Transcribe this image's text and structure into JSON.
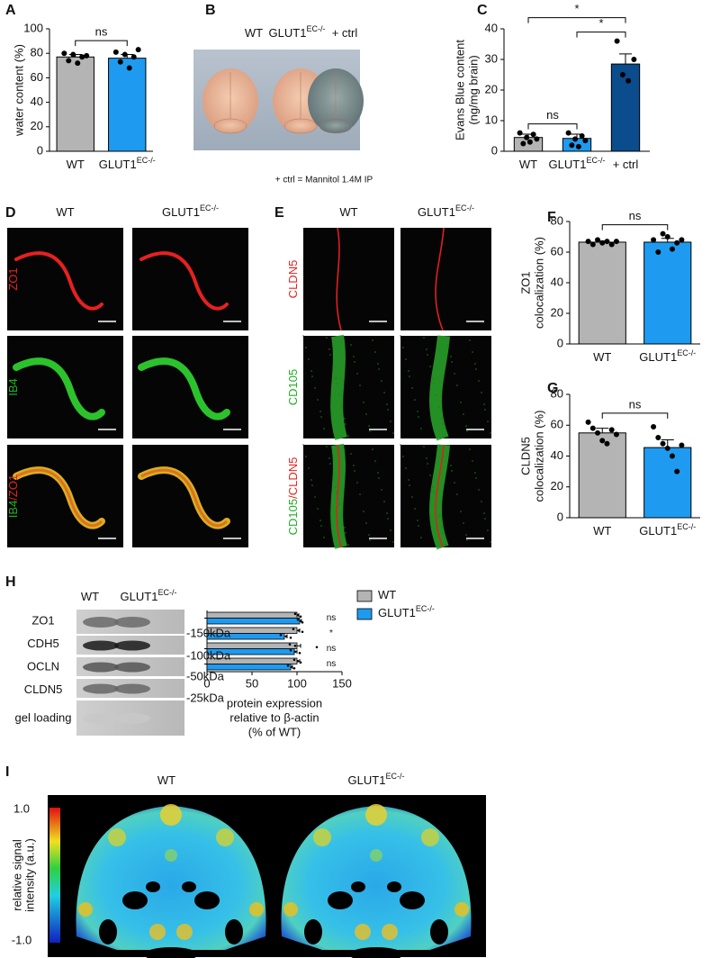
{
  "chart_data": [
    {
      "type": "bar",
      "panel": "A",
      "ylabel": [
        "water content (%)"
      ],
      "categories": [
        "WT",
        "GLUT1"
      ],
      "category_superscripts": [
        null,
        "EC-/-"
      ],
      "colors": [
        "#b4b4b4",
        "#1e9bf0"
      ],
      "values": [
        77,
        76
      ],
      "errors": [
        2,
        3
      ],
      "points": [
        [
          80,
          74,
          79,
          72,
          77,
          78
        ],
        [
          81,
          73,
          79,
          68,
          77,
          83
        ]
      ],
      "ylim": [
        0,
        100
      ],
      "yticks": [
        0,
        20,
        40,
        60,
        80,
        100
      ],
      "comparisons": [
        {
          "label": "ns",
          "groups": [
            0,
            1
          ]
        }
      ]
    },
    {
      "type": "bar",
      "panel": "C",
      "ylabel": [
        "Evans Blue content",
        "(ng/mg brain)"
      ],
      "categories": [
        "WT",
        "GLUT1",
        "+ ctrl"
      ],
      "category_superscripts": [
        null,
        "EC-/-",
        null
      ],
      "colors": [
        "#b4b4b4",
        "#1e9bf0",
        "#0b4c8c"
      ],
      "values": [
        4.5,
        4.2,
        28.5
      ],
      "errors": [
        1.1,
        1.4,
        3.3
      ],
      "points": [
        [
          6,
          2.5,
          4.5,
          3,
          5.5,
          4
        ],
        [
          6,
          2,
          4,
          1.5,
          5,
          3.5
        ],
        [
          36,
          25,
          23,
          30
        ]
      ],
      "ylim": [
        0,
        40
      ],
      "yticks": [
        0,
        10,
        20,
        30,
        40
      ],
      "comparisons": [
        {
          "label": "ns",
          "groups": [
            0,
            1
          ]
        },
        {
          "label": "*",
          "groups": [
            0,
            2
          ]
        },
        {
          "label": "*",
          "groups": [
            1,
            2
          ]
        }
      ]
    },
    {
      "type": "bar",
      "panel": "F",
      "ylabel": [
        "ZO1",
        "colocalization (%)"
      ],
      "categories": [
        "WT",
        "GLUT1"
      ],
      "category_superscripts": [
        null,
        "EC-/-"
      ],
      "colors": [
        "#b4b4b4",
        "#1e9bf0"
      ],
      "values": [
        66.5,
        66.5
      ],
      "errors": [
        0.8,
        2.5
      ],
      "points": [
        [
          67,
          65,
          68,
          66,
          67,
          65,
          67
        ],
        [
          68,
          60,
          72,
          70,
          62,
          66,
          68
        ]
      ],
      "ylim": [
        0,
        80
      ],
      "yticks": [
        0,
        20,
        40,
        60,
        80
      ],
      "comparisons": [
        {
          "label": "ns",
          "groups": [
            0,
            1
          ]
        }
      ]
    },
    {
      "type": "bar",
      "panel": "G",
      "ylabel": [
        "CLDN5",
        "colocalization (%)"
      ],
      "categories": [
        "WT",
        "GLUT1"
      ],
      "category_superscripts": [
        null,
        "EC-/-"
      ],
      "colors": [
        "#b4b4b4",
        "#1e9bf0"
      ],
      "values": [
        55,
        45.5
      ],
      "errors": [
        3,
        5
      ],
      "points": [
        [
          62,
          58,
          55,
          50,
          48,
          57,
          54
        ],
        [
          59,
          52,
          48,
          45,
          40,
          30,
          47
        ]
      ],
      "ylim": [
        0,
        80
      ],
      "yticks": [
        0,
        20,
        40,
        60,
        80
      ],
      "comparisons": [
        {
          "label": "ns",
          "groups": [
            0,
            1
          ]
        }
      ]
    },
    {
      "type": "hbar",
      "panel": "H",
      "categories": [
        "ZO1",
        "CDH5",
        "OCLN",
        "CLDN5"
      ],
      "xlabel": [
        "protein expression",
        "relative to β-actin",
        "(% of WT)"
      ],
      "xlim": [
        0,
        150
      ],
      "xticks": [
        0,
        50,
        100,
        150
      ],
      "series": [
        {
          "name": "WT",
          "name_superscript": null,
          "color": "#b4b4b4",
          "values": [
            100,
            100,
            100,
            100
          ],
          "errors": [
            2,
            3,
            4,
            3
          ],
          "points": [
            [
              98,
              101,
              104
            ],
            [
              96,
              102,
              106
            ],
            [
              92,
              98,
              122
            ],
            [
              97,
              101,
              104
            ]
          ]
        },
        {
          "name": "GLUT1",
          "name_superscript": "EC-/-",
          "color": "#1e9bf0",
          "values": [
            103,
            86,
            97,
            93
          ],
          "errors": [
            2,
            3,
            3,
            2
          ],
          "points": [
            [
              101,
              104,
              106
            ],
            [
              82,
              88,
              93
            ],
            [
              93,
              98,
              103
            ],
            [
              90,
              94,
              97
            ]
          ]
        }
      ],
      "annotations": [
        "ns",
        "*",
        "ns",
        "ns"
      ]
    }
  ],
  "figure_b": {
    "panel": "B",
    "headers": [
      "WT",
      "GLUT1",
      "+ ctrl"
    ],
    "header_superscripts": [
      null,
      "EC-/-",
      null
    ],
    "footnote": "+ ctrl = Mannitol 1.4M IP"
  },
  "figure_d": {
    "panel": "D",
    "columns": [
      "WT",
      "GLUT1"
    ],
    "column_superscripts": [
      null,
      "EC-/-"
    ],
    "row_labels": [
      [
        {
          "text": "ZO1",
          "color": "#e8231f"
        }
      ],
      [
        {
          "text": "IB4",
          "color": "#22b022"
        }
      ],
      [
        {
          "text": "IB4",
          "color": "#22b022"
        },
        {
          "text": "/ZO1",
          "color": "#e8231f"
        }
      ]
    ]
  },
  "figure_e": {
    "panel": "E",
    "columns": [
      "WT",
      "GLUT1"
    ],
    "column_superscripts": [
      null,
      "EC-/-"
    ],
    "row_labels": [
      [
        {
          "text": "CLDN5",
          "color": "#e8231f"
        }
      ],
      [
        {
          "text": "CD105",
          "color": "#22b022"
        }
      ],
      [
        {
          "text": "CD105",
          "color": "#22b022"
        },
        {
          "text": "/CLDN5",
          "color": "#e8231f"
        }
      ]
    ]
  },
  "blot": {
    "columns": [
      "WT",
      "GLUT1"
    ],
    "column_superscripts": [
      null,
      "EC-/-"
    ],
    "extra_row": "gel loading",
    "markers": [
      "-150kDa",
      "-100kDa",
      "-50kDa",
      "-25kDa"
    ]
  },
  "figure_i": {
    "panel": "I",
    "columns": [
      "WT",
      "GLUT1"
    ],
    "column_superscripts": [
      null,
      "EC-/-"
    ],
    "colorbar_labels": [
      "1.0",
      "-1.0"
    ],
    "colorbar_title": [
      "relative signal",
      "intensity (a.u.)"
    ]
  }
}
